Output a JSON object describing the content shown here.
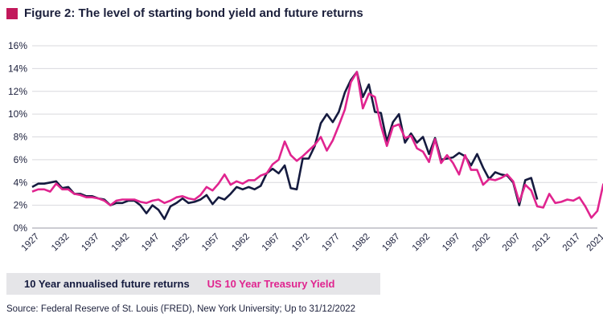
{
  "header": {
    "title": "Figure 2: The level of starting bond yield and future returns",
    "accent_color": "#c2185b"
  },
  "legend": {
    "items": [
      {
        "label": "10 Year annualised future returns",
        "color": "#151b3f"
      },
      {
        "label": "US 10 Year Treasury Yield",
        "color": "#e0248f"
      }
    ]
  },
  "source": "Source: Federal Reserve of St. Louis (FRED), New York University; Up to 31/12/2022",
  "chart_data": {
    "type": "line",
    "title": "Figure 2: The level of starting bond yield and future returns",
    "xlabel": "",
    "ylabel": "",
    "xlim": [
      1927,
      2021
    ],
    "ylim": [
      0,
      16
    ],
    "y_ticks": [
      "0%",
      "2%",
      "4%",
      "6%",
      "8%",
      "10%",
      "12%",
      "14%",
      "16%"
    ],
    "x_ticks": [
      "1927",
      "1932",
      "1937",
      "1942",
      "1947",
      "1952",
      "1957",
      "1962",
      "1967",
      "1972",
      "1977",
      "1982",
      "1987",
      "1992",
      "1997",
      "2002",
      "2007",
      "2012",
      "2017",
      "2021"
    ],
    "grid": true,
    "legend_position": "bottom",
    "series": [
      {
        "name": "10 Year annualised future returns",
        "color": "#151b3f",
        "points": [
          [
            1927,
            3.6
          ],
          [
            1928,
            3.9
          ],
          [
            1929,
            3.9
          ],
          [
            1930,
            4.0
          ],
          [
            1931,
            4.1
          ],
          [
            1932,
            3.5
          ],
          [
            1933,
            3.6
          ],
          [
            1934,
            3.0
          ],
          [
            1935,
            3.0
          ],
          [
            1936,
            2.8
          ],
          [
            1937,
            2.8
          ],
          [
            1938,
            2.6
          ],
          [
            1939,
            2.5
          ],
          [
            1940,
            2.0
          ],
          [
            1941,
            2.2
          ],
          [
            1942,
            2.2
          ],
          [
            1943,
            2.4
          ],
          [
            1944,
            2.4
          ],
          [
            1945,
            2.0
          ],
          [
            1946,
            1.3
          ],
          [
            1947,
            2.0
          ],
          [
            1948,
            1.6
          ],
          [
            1949,
            0.8
          ],
          [
            1950,
            1.9
          ],
          [
            1951,
            2.2
          ],
          [
            1952,
            2.6
          ],
          [
            1953,
            2.2
          ],
          [
            1954,
            2.3
          ],
          [
            1955,
            2.5
          ],
          [
            1956,
            2.9
          ],
          [
            1957,
            2.1
          ],
          [
            1958,
            2.7
          ],
          [
            1959,
            2.5
          ],
          [
            1960,
            3.0
          ],
          [
            1961,
            3.6
          ],
          [
            1962,
            3.4
          ],
          [
            1963,
            3.6
          ],
          [
            1964,
            3.4
          ],
          [
            1965,
            3.7
          ],
          [
            1966,
            4.8
          ],
          [
            1967,
            5.2
          ],
          [
            1968,
            4.8
          ],
          [
            1969,
            5.5
          ],
          [
            1970,
            3.5
          ],
          [
            1971,
            3.4
          ],
          [
            1972,
            6.1
          ],
          [
            1973,
            6.1
          ],
          [
            1974,
            7.2
          ],
          [
            1975,
            9.2
          ],
          [
            1976,
            10.0
          ],
          [
            1977,
            9.3
          ],
          [
            1978,
            10.2
          ],
          [
            1979,
            11.9
          ],
          [
            1980,
            13.0
          ],
          [
            1981,
            13.7
          ],
          [
            1982,
            11.5
          ],
          [
            1983,
            12.6
          ],
          [
            1984,
            10.2
          ],
          [
            1985,
            10.1
          ],
          [
            1986,
            7.6
          ],
          [
            1987,
            9.3
          ],
          [
            1988,
            10.0
          ],
          [
            1989,
            7.5
          ],
          [
            1990,
            8.3
          ],
          [
            1991,
            7.5
          ],
          [
            1992,
            8.0
          ],
          [
            1993,
            6.5
          ],
          [
            1994,
            7.9
          ],
          [
            1995,
            6.0
          ],
          [
            1996,
            6.1
          ],
          [
            1997,
            6.2
          ],
          [
            1998,
            6.6
          ],
          [
            1999,
            6.3
          ],
          [
            2000,
            5.5
          ],
          [
            2001,
            6.5
          ],
          [
            2002,
            5.3
          ],
          [
            2003,
            4.3
          ],
          [
            2004,
            4.9
          ],
          [
            2005,
            4.7
          ],
          [
            2006,
            4.6
          ],
          [
            2007,
            4.0
          ],
          [
            2008,
            2.0
          ],
          [
            2009,
            4.2
          ],
          [
            2010,
            4.4
          ],
          [
            2011,
            2.5
          ]
        ]
      },
      {
        "name": "US 10 Year Treasury Yield",
        "color": "#e0248f",
        "points": [
          [
            1927,
            3.2
          ],
          [
            1928,
            3.4
          ],
          [
            1929,
            3.4
          ],
          [
            1930,
            3.2
          ],
          [
            1931,
            3.9
          ],
          [
            1932,
            3.4
          ],
          [
            1933,
            3.4
          ],
          [
            1934,
            3.0
          ],
          [
            1935,
            2.9
          ],
          [
            1936,
            2.7
          ],
          [
            1937,
            2.7
          ],
          [
            1938,
            2.6
          ],
          [
            1939,
            2.4
          ],
          [
            1940,
            2.0
          ],
          [
            1941,
            2.4
          ],
          [
            1942,
            2.5
          ],
          [
            1943,
            2.5
          ],
          [
            1944,
            2.5
          ],
          [
            1945,
            2.3
          ],
          [
            1946,
            2.2
          ],
          [
            1947,
            2.4
          ],
          [
            1948,
            2.5
          ],
          [
            1949,
            2.2
          ],
          [
            1950,
            2.4
          ],
          [
            1951,
            2.7
          ],
          [
            1952,
            2.8
          ],
          [
            1953,
            2.6
          ],
          [
            1954,
            2.5
          ],
          [
            1955,
            2.9
          ],
          [
            1956,
            3.6
          ],
          [
            1957,
            3.3
          ],
          [
            1958,
            3.9
          ],
          [
            1959,
            4.7
          ],
          [
            1960,
            3.8
          ],
          [
            1961,
            4.1
          ],
          [
            1962,
            3.9
          ],
          [
            1963,
            4.2
          ],
          [
            1964,
            4.2
          ],
          [
            1965,
            4.6
          ],
          [
            1966,
            4.8
          ],
          [
            1967,
            5.6
          ],
          [
            1968,
            6.0
          ],
          [
            1969,
            7.6
          ],
          [
            1970,
            6.4
          ],
          [
            1971,
            5.9
          ],
          [
            1972,
            6.3
          ],
          [
            1973,
            6.8
          ],
          [
            1974,
            7.3
          ],
          [
            1975,
            8.0
          ],
          [
            1976,
            6.8
          ],
          [
            1977,
            7.7
          ],
          [
            1978,
            9.0
          ],
          [
            1979,
            10.4
          ],
          [
            1980,
            12.8
          ],
          [
            1981,
            13.7
          ],
          [
            1982,
            10.5
          ],
          [
            1983,
            11.8
          ],
          [
            1984,
            11.5
          ],
          [
            1985,
            9.0
          ],
          [
            1986,
            7.2
          ],
          [
            1987,
            8.9
          ],
          [
            1988,
            9.1
          ],
          [
            1989,
            7.9
          ],
          [
            1990,
            8.1
          ],
          [
            1991,
            7.0
          ],
          [
            1992,
            6.7
          ],
          [
            1993,
            5.8
          ],
          [
            1994,
            7.8
          ],
          [
            1995,
            5.7
          ],
          [
            1996,
            6.4
          ],
          [
            1997,
            5.7
          ],
          [
            1998,
            4.7
          ],
          [
            1999,
            6.4
          ],
          [
            2000,
            5.1
          ],
          [
            2001,
            5.1
          ],
          [
            2002,
            3.8
          ],
          [
            2003,
            4.3
          ],
          [
            2004,
            4.2
          ],
          [
            2005,
            4.4
          ],
          [
            2006,
            4.7
          ],
          [
            2007,
            4.1
          ],
          [
            2008,
            2.3
          ],
          [
            2009,
            3.8
          ],
          [
            2010,
            3.3
          ],
          [
            2011,
            1.9
          ],
          [
            2012,
            1.8
          ],
          [
            2013,
            3.0
          ],
          [
            2014,
            2.2
          ],
          [
            2015,
            2.3
          ],
          [
            2016,
            2.5
          ],
          [
            2017,
            2.4
          ],
          [
            2018,
            2.7
          ],
          [
            2019,
            1.9
          ],
          [
            2020,
            0.9
          ],
          [
            2021,
            1.5
          ],
          [
            2022,
            3.9
          ]
        ]
      }
    ]
  }
}
